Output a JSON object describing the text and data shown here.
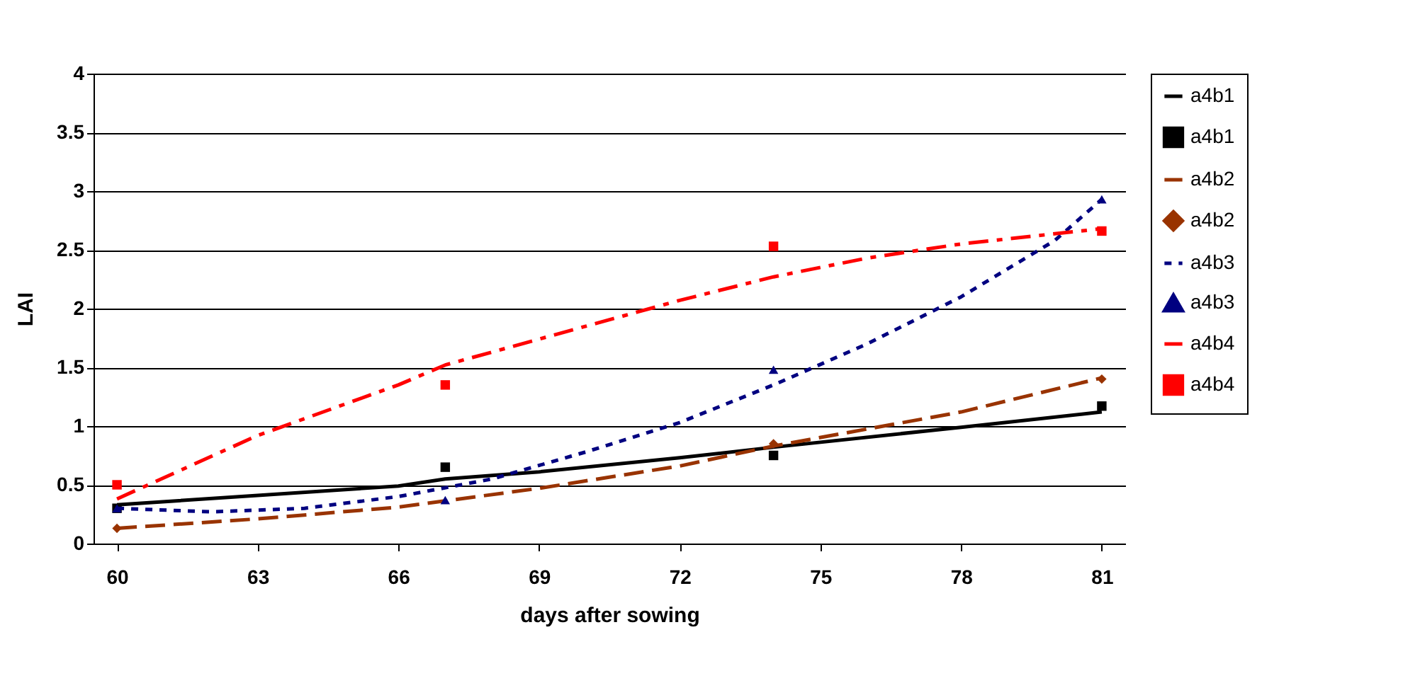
{
  "chart_data": {
    "type": "scatter",
    "xlabel": "days after sowing",
    "ylabel": "LAI",
    "xlim": [
      59.5,
      81.5
    ],
    "xticks": [
      60,
      63,
      66,
      69,
      72,
      75,
      78,
      81
    ],
    "ylim": [
      0,
      4
    ],
    "yticks": [
      0,
      0.5,
      1,
      1.5,
      2,
      2.5,
      3,
      3.5,
      4
    ],
    "grid": "y",
    "legend": "right",
    "series": [
      {
        "name": "a4b1",
        "type": "line",
        "color": "#000000",
        "line_style": "solid",
        "marker": "none",
        "x": [
          60,
          63,
          66,
          67,
          69,
          72,
          74,
          78,
          81
        ],
        "values": [
          0.33,
          0.41,
          0.49,
          0.55,
          0.61,
          0.73,
          0.82,
          0.99,
          1.12
        ]
      },
      {
        "name": "a4b1",
        "color": "#000000",
        "marker": "square",
        "x": [
          60,
          67,
          74,
          81
        ],
        "values": [
          0.3,
          0.65,
          0.75,
          1.17
        ]
      },
      {
        "name": "a4b2",
        "type": "line",
        "color": "#993300",
        "line_style": "dashed",
        "marker": "none",
        "x": [
          60,
          63,
          66,
          69,
          72,
          74,
          78,
          81
        ],
        "values": [
          0.13,
          0.21,
          0.31,
          0.47,
          0.66,
          0.83,
          1.12,
          1.41
        ]
      },
      {
        "name": "a4b2",
        "color": "#993300",
        "marker": "diamond",
        "x": [
          60,
          67,
          74,
          81
        ],
        "values": [
          0.13,
          null,
          0.85,
          1.4
        ]
      },
      {
        "name": "a4b3",
        "type": "line",
        "color": "#000080",
        "line_style": "dotted",
        "marker": "none",
        "x": [
          60,
          62,
          64,
          66,
          68,
          70,
          72,
          74,
          76,
          78,
          80,
          81
        ],
        "values": [
          0.3,
          0.27,
          0.3,
          0.4,
          0.55,
          0.78,
          1.03,
          1.35,
          1.7,
          2.1,
          2.58,
          2.93
        ]
      },
      {
        "name": "a4b3",
        "color": "#000080",
        "marker": "triangle",
        "x": [
          60,
          67,
          74,
          81
        ],
        "values": [
          0.3,
          0.37,
          1.48,
          2.93
        ]
      },
      {
        "name": "a4b4",
        "type": "line",
        "color": "#ff0000",
        "line_style": "dashdot",
        "marker": "none",
        "x": [
          60,
          63,
          66,
          67,
          70,
          72,
          74,
          76,
          78,
          81
        ],
        "values": [
          0.38,
          0.92,
          1.35,
          1.52,
          1.85,
          2.07,
          2.27,
          2.43,
          2.55,
          2.68
        ]
      },
      {
        "name": "a4b4",
        "color": "#ff0000",
        "marker": "square",
        "x": [
          60,
          67,
          74,
          81
        ],
        "values": [
          0.5,
          1.35,
          2.53,
          2.66
        ]
      }
    ]
  }
}
